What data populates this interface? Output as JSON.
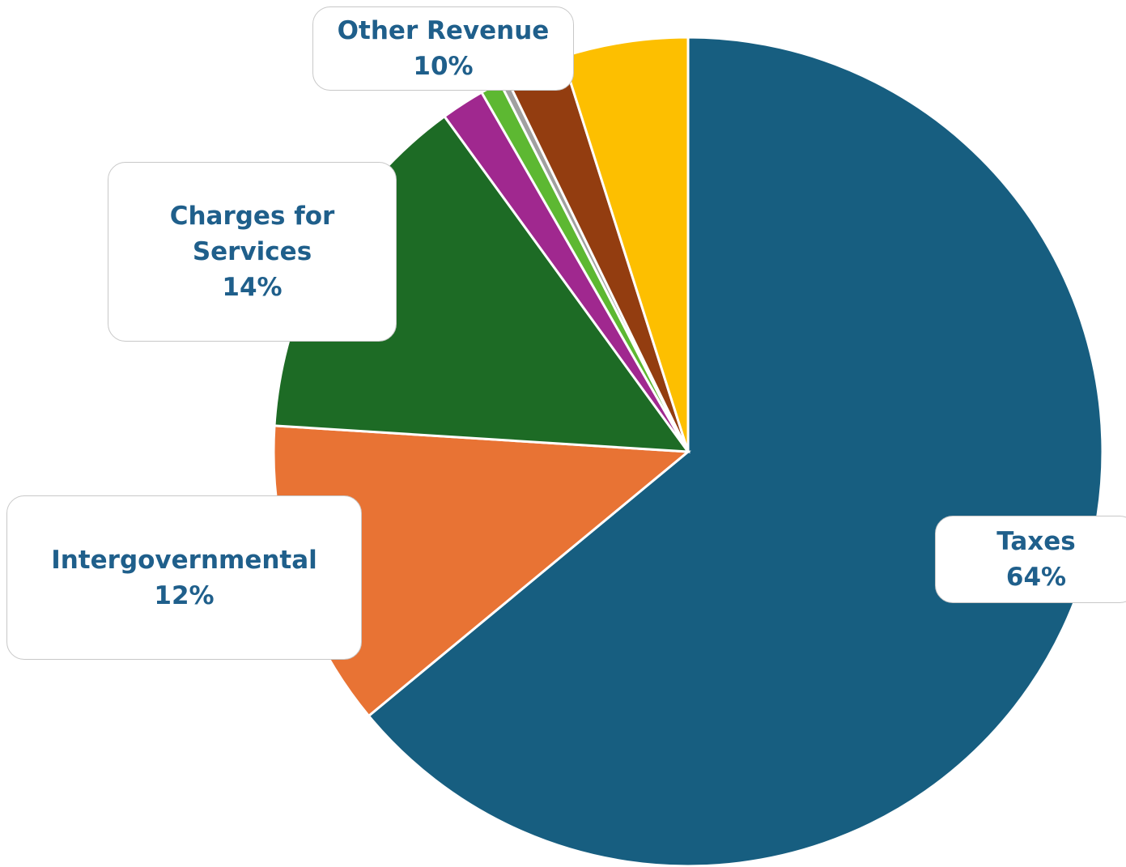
{
  "chart_data": {
    "type": "pie",
    "categories": [
      "Taxes",
      "Intergovernmental",
      "Charges for Services"
    ],
    "values": [
      64,
      12,
      14
    ],
    "value_labels": [
      "64%",
      "12%",
      "14%"
    ],
    "colors": [
      "#175e80",
      "#e87334",
      "#1d6b25"
    ],
    "other": {
      "name": "Other Revenue",
      "value_label": "10%",
      "values": [
        1.7,
        0.8,
        0.3,
        2.3,
        4.9
      ],
      "colors": [
        "#a0288f",
        "#5db832",
        "#a0a0a0",
        "#933d10",
        "#fdbf00"
      ]
    }
  }
}
